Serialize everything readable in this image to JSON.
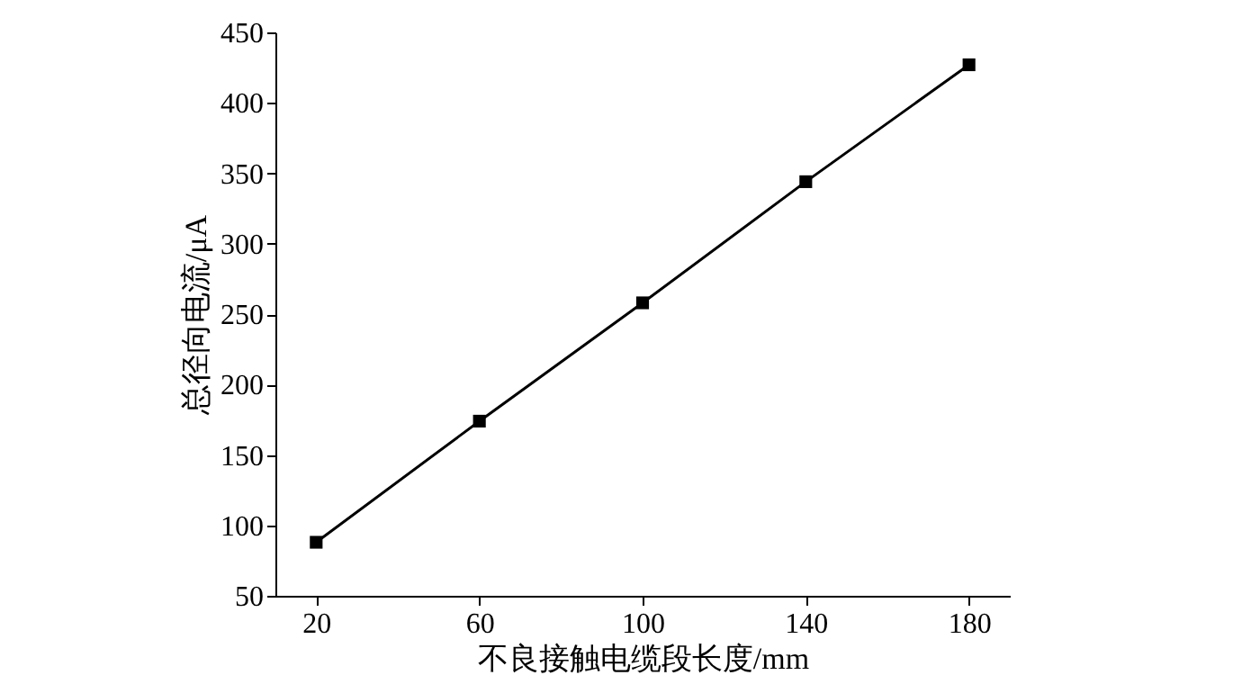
{
  "chart_data": {
    "type": "line",
    "xlabel": "不良接触电缆段长度/mm",
    "ylabel": "总径向电流/μA",
    "x": [
      20,
      60,
      100,
      140,
      180
    ],
    "series": [
      {
        "color": "#000000",
        "values": [
          88,
          174,
          258,
          344,
          427
        ]
      }
    ],
    "xlim": [
      10,
      190
    ],
    "xticks": [
      20,
      60,
      100,
      140,
      180
    ],
    "ylim": [
      50,
      450
    ],
    "yticks": [
      50,
      100,
      150,
      200,
      250,
      300,
      350,
      400,
      450
    ],
    "marker": "square",
    "line_style": "solid",
    "grid": false,
    "legend": false
  }
}
